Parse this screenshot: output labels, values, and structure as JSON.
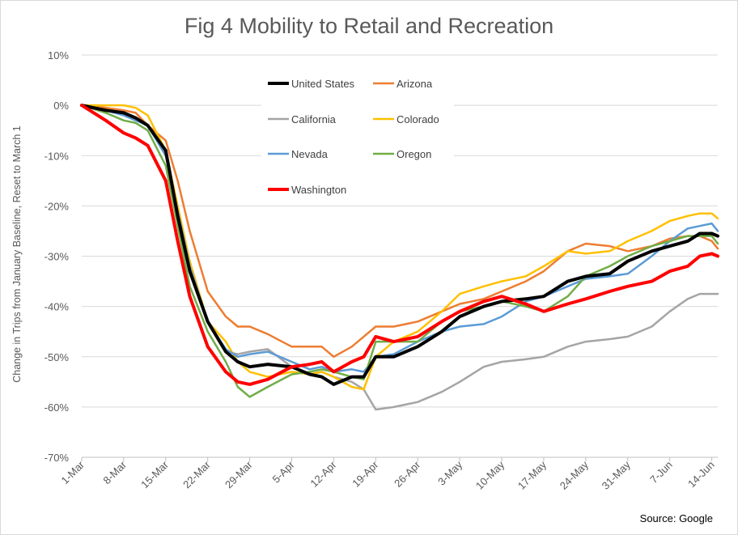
{
  "chart_data": {
    "type": "line",
    "title": "Fig 4 Mobility to Retail and Recreation",
    "ylabel": "Change in Trips from January Baseline, Reset to March 1",
    "xlabel": "",
    "source": "Source: Google",
    "x_ticks": [
      "1-Mar",
      "8-Mar",
      "15-Mar",
      "22-Mar",
      "29-Mar",
      "5-Apr",
      "12-Apr",
      "19-Apr",
      "26-Apr",
      "3-May",
      "10-May",
      "17-May",
      "24-May",
      "31-May",
      "7-Jun",
      "14-Jun"
    ],
    "y_ticks": [
      "10%",
      "0%",
      "-10%",
      "-20%",
      "-30%",
      "-40%",
      "-50%",
      "-60%",
      "-70%"
    ],
    "ylim": [
      -70,
      10
    ],
    "grid": true,
    "legend_position": "top-center",
    "x_dates": [
      "1-Mar",
      "5-Mar",
      "8-Mar",
      "10-Mar",
      "12-Mar",
      "15-Mar",
      "17-Mar",
      "19-Mar",
      "22-Mar",
      "25-Mar",
      "27-Mar",
      "29-Mar",
      "1-Apr",
      "5-Apr",
      "8-Apr",
      "10-Apr",
      "12-Apr",
      "15-Apr",
      "17-Apr",
      "19-Apr",
      "22-Apr",
      "26-Apr",
      "30-Apr",
      "3-May",
      "7-May",
      "10-May",
      "14-May",
      "17-May",
      "21-May",
      "24-May",
      "28-May",
      "31-May",
      "4-Jun",
      "7-Jun",
      "10-Jun",
      "12-Jun",
      "14-Jun",
      "15-Jun"
    ],
    "series": [
      {
        "name": "United States",
        "color": "#000000",
        "width": 4,
        "values": [
          0,
          -1,
          -1.5,
          -2.5,
          -4,
          -9,
          -22,
          -33,
          -43,
          -49,
          -51,
          -52,
          -51.5,
          -52,
          -53.5,
          -54,
          -55.5,
          -54,
          -54,
          -50,
          -50,
          -48,
          -45,
          -42,
          -40,
          -39,
          -38.5,
          -38,
          -35,
          -34,
          -33.5,
          -31,
          -29,
          -28,
          -27,
          -25.5,
          -25.5,
          -26
        ]
      },
      {
        "name": "Arizona",
        "color": "#ED7D31",
        "width": 2.5,
        "values": [
          0,
          -0.5,
          -1,
          -1.5,
          -4,
          -7,
          -15,
          -25,
          -37,
          -42,
          -44,
          -44,
          -45.5,
          -48,
          -48,
          -48,
          -50,
          -48,
          -46,
          -44,
          -44,
          -43,
          -41,
          -39.5,
          -38.5,
          -37,
          -35,
          -33,
          -29,
          -27.5,
          -28,
          -29,
          -28,
          -26.5,
          -26,
          -26,
          -27,
          -28.5
        ]
      },
      {
        "name": "California",
        "color": "#A5A5A5",
        "width": 2.5,
        "values": [
          0,
          -0.5,
          -1.5,
          -2.5,
          -4,
          -10,
          -22,
          -33,
          -43,
          -49,
          -49.5,
          -49,
          -48.5,
          -52,
          -53.5,
          -53,
          -54,
          -55,
          -56.5,
          -60.5,
          -60,
          -59,
          -57,
          -55,
          -52,
          -51,
          -50.5,
          -50,
          -48,
          -47,
          -46.5,
          -46,
          -44,
          -41,
          -38.5,
          -37.5,
          -37.5,
          -37.5
        ]
      },
      {
        "name": "Colorado",
        "color": "#FFC000",
        "width": 2.5,
        "values": [
          0,
          0,
          0,
          -0.5,
          -2,
          -9,
          -20,
          -31,
          -43,
          -47,
          -51,
          -53,
          -54,
          -53,
          -53.5,
          -53,
          -54,
          -56,
          -56.5,
          -50,
          -47,
          -45,
          -41,
          -37.5,
          -36,
          -35,
          -34,
          -32,
          -29,
          -29.5,
          -29,
          -27,
          -25,
          -23,
          -22,
          -21.5,
          -21.5,
          -22.5
        ]
      },
      {
        "name": "Nevada",
        "color": "#5B9BD5",
        "width": 2.5,
        "values": [
          0,
          -1,
          -2,
          -3,
          -4,
          -10,
          -21,
          -32,
          -43,
          -48.5,
          -50,
          -49.5,
          -49,
          -51,
          -52.5,
          -52,
          -53,
          -52.5,
          -53,
          -50,
          -49.5,
          -47,
          -45,
          -44,
          -43.5,
          -42,
          -39,
          -38,
          -36,
          -34.5,
          -34,
          -33.5,
          -30,
          -27,
          -24.5,
          -24,
          -23.5,
          -25
        ]
      },
      {
        "name": "Oregon",
        "color": "#70AD47",
        "width": 2.5,
        "values": [
          0,
          -1.5,
          -3,
          -3.5,
          -5,
          -12,
          -24,
          -36,
          -45,
          -51,
          -56,
          -58,
          -56,
          -53.5,
          -53,
          -52.5,
          -53,
          -54,
          -54.5,
          -47,
          -47,
          -47,
          -43,
          -41,
          -40,
          -39,
          -40,
          -41,
          -38,
          -34,
          -32,
          -30,
          -28,
          -27,
          -26,
          -26,
          -26,
          -27.5
        ]
      },
      {
        "name": "Washington",
        "color": "#FF0000",
        "width": 4,
        "values": [
          0,
          -3,
          -5.5,
          -6.5,
          -8,
          -15,
          -27,
          -38,
          -48,
          -53,
          -55,
          -55.5,
          -54.5,
          -52,
          -51.5,
          -51,
          -53,
          -51,
          -50,
          -46,
          -47,
          -46,
          -43,
          -41,
          -39,
          -38,
          -39.5,
          -41,
          -39.5,
          -38.5,
          -37,
          -36,
          -35,
          -33,
          -32,
          -30,
          -29.5,
          -30
        ]
      }
    ]
  }
}
